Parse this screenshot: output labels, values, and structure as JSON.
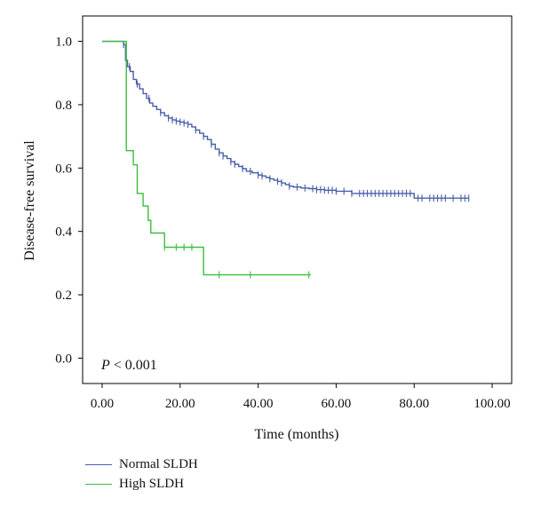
{
  "chart_data": {
    "type": "line",
    "xlabel": "Time (months)",
    "ylabel": "Disease-free survival",
    "xlim": [
      -5,
      105
    ],
    "ylim": [
      -0.08,
      1.08
    ],
    "xticks": [
      0,
      20,
      40,
      60,
      80,
      100
    ],
    "xtick_labels": [
      "0.00",
      "20.00",
      "40.00",
      "60.00",
      "80.00",
      "100.00"
    ],
    "yticks": [
      0,
      0.2,
      0.4,
      0.6,
      0.8,
      1.0
    ],
    "ytick_labels": [
      "0.0",
      "0.2",
      "0.4",
      "0.6",
      "0.8",
      "1.0"
    ],
    "grid": false,
    "legend_position": "bottom-left",
    "annotation": {
      "italic": "P",
      "text": " < 0.001"
    },
    "series": [
      {
        "name": "Normal SLDH",
        "color": "#4a5fa8",
        "steps": [
          [
            0,
            1.0
          ],
          [
            5.5,
            0.99
          ],
          [
            6,
            0.94
          ],
          [
            6.5,
            0.92
          ],
          [
            7.2,
            0.905
          ],
          [
            8,
            0.88
          ],
          [
            8.8,
            0.865
          ],
          [
            9.6,
            0.85
          ],
          [
            10.5,
            0.835
          ],
          [
            11.4,
            0.82
          ],
          [
            12.2,
            0.805
          ],
          [
            13,
            0.795
          ],
          [
            14,
            0.785
          ],
          [
            15,
            0.775
          ],
          [
            16,
            0.765
          ],
          [
            17,
            0.758
          ],
          [
            18,
            0.752
          ],
          [
            19,
            0.748
          ],
          [
            20,
            0.745
          ],
          [
            21,
            0.742
          ],
          [
            22,
            0.738
          ],
          [
            23,
            0.73
          ],
          [
            24,
            0.72
          ],
          [
            25,
            0.71
          ],
          [
            26,
            0.7
          ],
          [
            27,
            0.69
          ],
          [
            28,
            0.675
          ],
          [
            29,
            0.66
          ],
          [
            30,
            0.648
          ],
          [
            31,
            0.638
          ],
          [
            32,
            0.63
          ],
          [
            33,
            0.62
          ],
          [
            34,
            0.612
          ],
          [
            35,
            0.605
          ],
          [
            36,
            0.598
          ],
          [
            37,
            0.59
          ],
          [
            38.5,
            0.585
          ],
          [
            40,
            0.578
          ],
          [
            41,
            0.575
          ],
          [
            42,
            0.57
          ],
          [
            43,
            0.566
          ],
          [
            44,
            0.562
          ],
          [
            45,
            0.558
          ],
          [
            46,
            0.553
          ],
          [
            47,
            0.548
          ],
          [
            48,
            0.543
          ],
          [
            49,
            0.54
          ],
          [
            51,
            0.537
          ],
          [
            53,
            0.535
          ],
          [
            55,
            0.532
          ],
          [
            57,
            0.53
          ],
          [
            60,
            0.527
          ],
          [
            64,
            0.52
          ],
          [
            80,
            0.505
          ],
          [
            94,
            0.505
          ]
        ],
        "censored": [
          5.5,
          7,
          9,
          12,
          15,
          17,
          18,
          19,
          20,
          21,
          22,
          24,
          26,
          28,
          30,
          31,
          33,
          34,
          36,
          38,
          40,
          41,
          43,
          45,
          46,
          48,
          50,
          52,
          54,
          55,
          56,
          57,
          58,
          59,
          60,
          62,
          64,
          66,
          67,
          68,
          69,
          70,
          71,
          72,
          73,
          74,
          75,
          76,
          77,
          78,
          79,
          81,
          82,
          84,
          85,
          86,
          87,
          88,
          90,
          92,
          93,
          94
        ]
      },
      {
        "name": "High SLDH",
        "color": "#3bbf3b",
        "steps": [
          [
            0,
            1.0
          ],
          [
            5.5,
            1.0
          ],
          [
            6.2,
            0.655
          ],
          [
            8,
            0.61
          ],
          [
            9,
            0.52
          ],
          [
            10.5,
            0.48
          ],
          [
            11.8,
            0.435
          ],
          [
            12.5,
            0.395
          ],
          [
            16,
            0.35
          ],
          [
            26,
            0.263
          ],
          [
            53.5,
            0.263
          ]
        ],
        "censored": [
          16,
          19,
          21,
          23,
          30,
          38,
          53
        ]
      }
    ]
  }
}
